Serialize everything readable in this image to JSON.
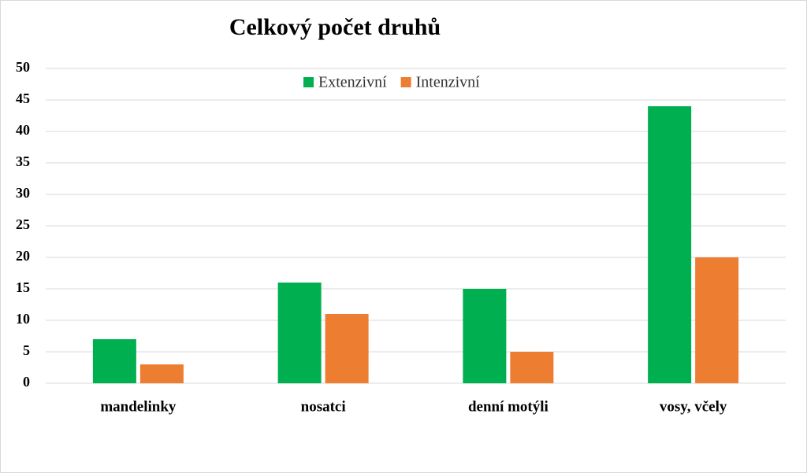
{
  "chart_data": {
    "type": "bar",
    "title": "Celkový počet druhů",
    "categories": [
      "mandelinky",
      "nosatci",
      "denní motýli",
      "vosy, včely"
    ],
    "series": [
      {
        "name": "Extenzivní",
        "color": "#00b050",
        "values": [
          7,
          16,
          15,
          44
        ]
      },
      {
        "name": "Intenzivní",
        "color": "#ed7d31",
        "values": [
          3,
          11,
          5,
          20
        ]
      }
    ],
    "ylim": [
      0,
      50
    ],
    "yticks": [
      0,
      5,
      10,
      15,
      20,
      25,
      30,
      35,
      40,
      45,
      50
    ],
    "grid": true
  }
}
